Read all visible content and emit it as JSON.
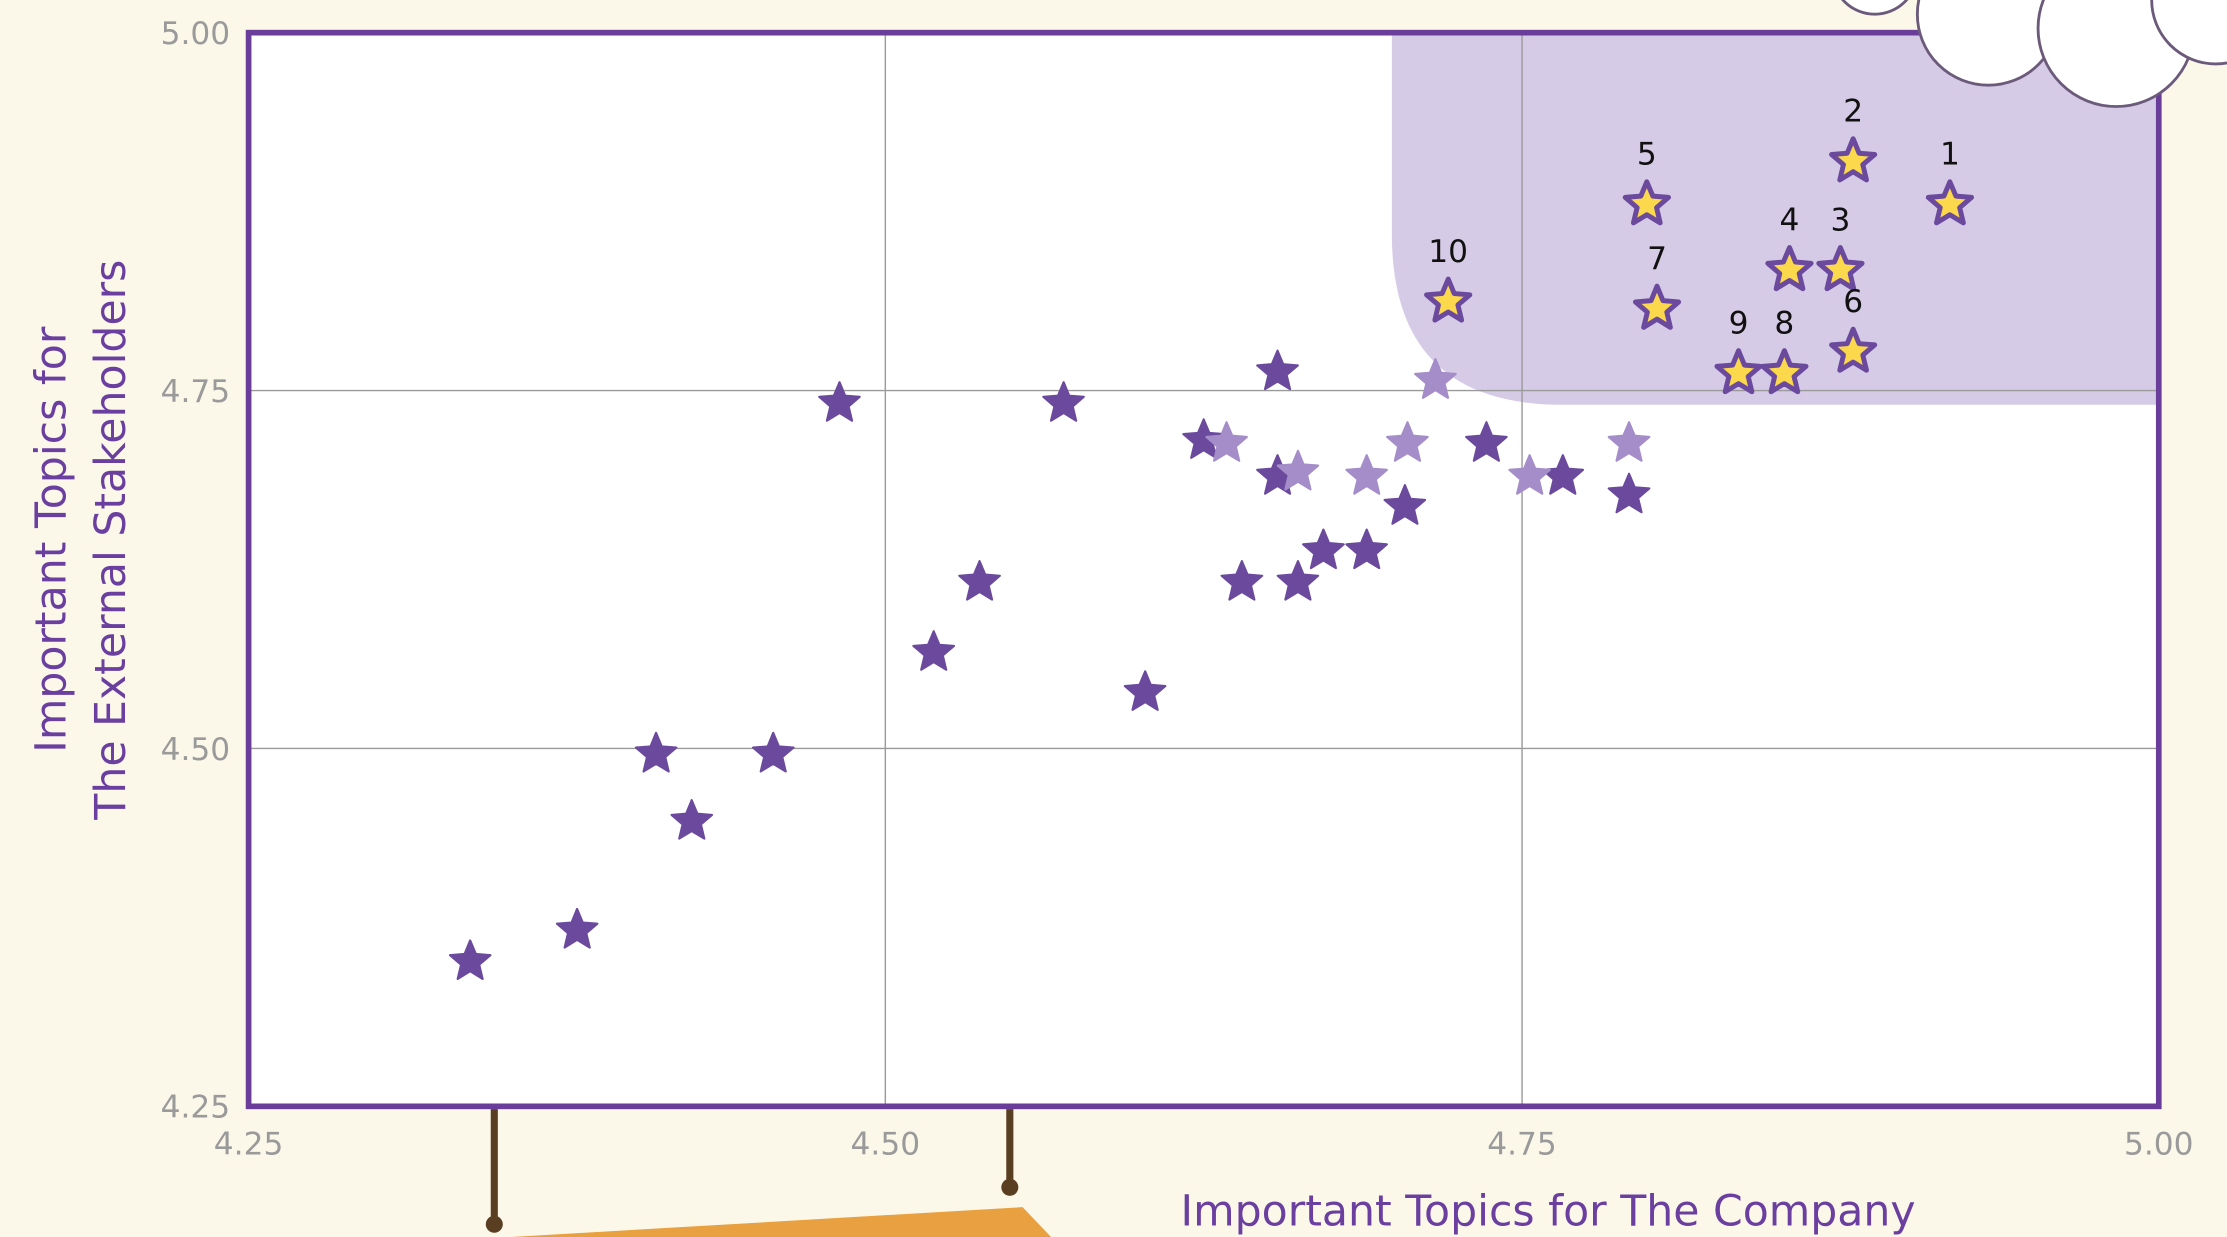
{
  "chart_data": {
    "type": "scatter",
    "xlabel": "Important Topics for The Company",
    "ylabel": [
      "Important Topics for",
      "The External Stakeholders"
    ],
    "xlim": [
      4.25,
      5.0
    ],
    "ylim": [
      4.25,
      5.0
    ],
    "xticks": [
      4.25,
      {
        "value": 4.5,
        "label": "4.50"
      },
      4.75,
      {
        "value": 5.0,
        "label": "5.00"
      }
    ],
    "yticks": [
      4.25,
      {
        "value": 4.5,
        "label": "4.50"
      },
      4.75,
      {
        "value": 5.0,
        "label": "5.00"
      }
    ],
    "grid": true,
    "series": [
      {
        "color": "#6b4a9e",
        "x": [
          4.337,
          4.379,
          4.41,
          4.424,
          4.456,
          4.482,
          4.519,
          4.537,
          4.57,
          4.602,
          4.625,
          4.64,
          4.654,
          4.654,
          4.662,
          4.672,
          4.689,
          4.704,
          4.736,
          4.766,
          4.792
        ],
        "y": [
          4.351,
          4.373,
          4.496,
          4.449,
          4.496,
          4.741,
          4.567,
          4.616,
          4.741,
          4.539,
          4.715,
          4.616,
          4.763,
          4.69,
          4.616,
          4.638,
          4.638,
          4.669,
          4.713,
          4.69,
          4.677
        ]
      },
      {
        "color": "#a48dc8",
        "x": [
          4.634,
          4.662,
          4.689,
          4.705,
          4.716,
          4.753,
          4.792
        ],
        "y": [
          4.713,
          4.693,
          4.69,
          4.713,
          4.757,
          4.69,
          4.713
        ]
      },
      {
        "color": "#fcd94c",
        "x": [
          4.918,
          4.88,
          4.875,
          4.855,
          4.799,
          4.88,
          4.803,
          4.853,
          4.835,
          4.721
        ],
        "y": [
          4.88,
          4.91,
          4.834,
          4.834,
          4.88,
          4.777,
          4.807,
          4.762,
          4.762,
          4.812
        ],
        "labels": [
          "1",
          "2",
          "3",
          "4",
          "5",
          "6",
          "7",
          "8",
          "9",
          "10"
        ]
      }
    ]
  }
}
